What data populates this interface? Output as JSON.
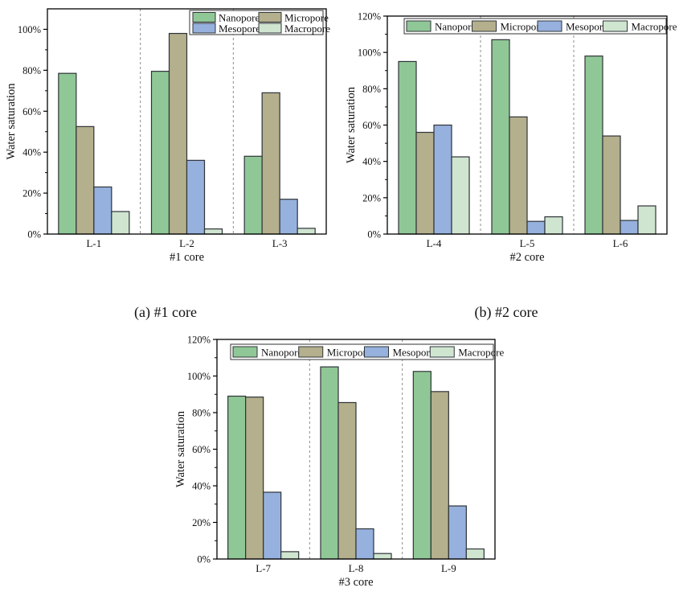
{
  "page": {
    "background": "#ffffff"
  },
  "captions": {
    "a": "(a) #1 core",
    "b": "(b) #2 core"
  },
  "legend_labels": [
    "Nanopore",
    "Micropore",
    "Mesopore",
    "Macropore"
  ],
  "colors": {
    "nanopore": "#90c796",
    "micropore": "#b4af8c",
    "mesopore": "#96b1dd",
    "macropore": "#cfe5d0",
    "bar_border": "#2f3338",
    "axis": "#000000",
    "separator": "#8c8c8c",
    "legend_border": "#333333",
    "text": "#111111"
  },
  "chart_data": [
    {
      "id": "a",
      "type": "bar",
      "title": "",
      "xlabel": "#1 core",
      "ylabel": "Water saturation",
      "categories": [
        "L-1",
        "L-2",
        "L-3"
      ],
      "series": [
        {
          "name": "Nanopore",
          "values": [
            78.5,
            79.5,
            38
          ]
        },
        {
          "name": "Micropore",
          "values": [
            52.5,
            98,
            69
          ]
        },
        {
          "name": "Mesopore",
          "values": [
            23,
            36,
            17
          ]
        },
        {
          "name": "Macropore",
          "values": [
            11,
            2.5,
            2.8
          ]
        }
      ],
      "ylim": [
        0,
        110
      ],
      "yticks": [
        0,
        20,
        40,
        60,
        80,
        100
      ],
      "ytick_format": "percent",
      "grid": false,
      "group_separators": true,
      "legend_position": "top-right-grid-2x2"
    },
    {
      "id": "b",
      "type": "bar",
      "title": "",
      "xlabel": "#2 core",
      "ylabel": "Water saturation",
      "categories": [
        "L-4",
        "L-5",
        "L-6"
      ],
      "series": [
        {
          "name": "Nanopore",
          "values": [
            95,
            107,
            98
          ]
        },
        {
          "name": "Micropore",
          "values": [
            56,
            64.5,
            54
          ]
        },
        {
          "name": "Mesopore",
          "values": [
            60,
            7,
            7.5
          ]
        },
        {
          "name": "Macropore",
          "values": [
            42.5,
            9.5,
            15.5
          ]
        }
      ],
      "ylim": [
        0,
        120
      ],
      "yticks": [
        0,
        20,
        40,
        60,
        80,
        100,
        120
      ],
      "ytick_format": "percent",
      "grid": false,
      "group_separators": true,
      "legend_position": "top-row"
    },
    {
      "id": "c",
      "type": "bar",
      "title": "",
      "xlabel": "#3 core",
      "ylabel": "Water saturation",
      "categories": [
        "L-7",
        "L-8",
        "L-9"
      ],
      "series": [
        {
          "name": "Nanopore",
          "values": [
            89,
            105,
            102.5
          ]
        },
        {
          "name": "Micropore",
          "values": [
            88.5,
            85.5,
            91.5
          ]
        },
        {
          "name": "Mesopore",
          "values": [
            36.5,
            16.5,
            29
          ]
        },
        {
          "name": "Macropore",
          "values": [
            4,
            3,
            5.5
          ]
        }
      ],
      "ylim": [
        0,
        120
      ],
      "yticks": [
        0,
        20,
        40,
        60,
        80,
        100,
        120
      ],
      "ytick_format": "percent",
      "grid": false,
      "group_separators": true,
      "legend_position": "top-row"
    }
  ]
}
